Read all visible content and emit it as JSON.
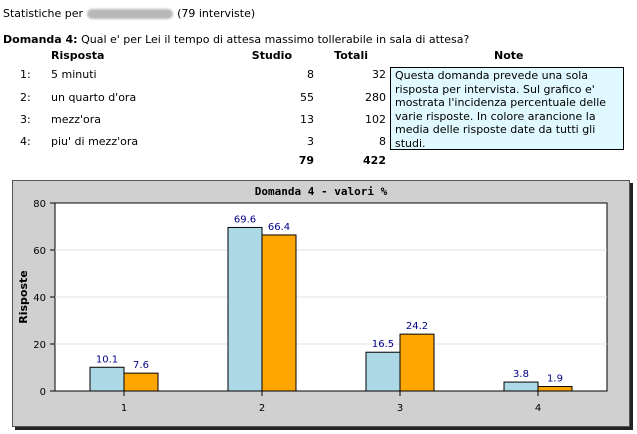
{
  "header": {
    "prefix": "Statistiche per",
    "suffix": "(79 interviste)"
  },
  "question": {
    "label": "Domanda 4:",
    "text": "Qual e' per Lei il tempo di attesa massimo tollerabile in sala di attesa?"
  },
  "table": {
    "columns": [
      "Risposta",
      "Studio",
      "Totali",
      "Note"
    ],
    "rows": [
      {
        "num": "1:",
        "label": "5 minuti",
        "studio": "8",
        "totali": "32"
      },
      {
        "num": "2:",
        "label": "un quarto d'ora",
        "studio": "55",
        "totali": "280"
      },
      {
        "num": "3:",
        "label": "mezz'ora",
        "studio": "13",
        "totali": "102"
      },
      {
        "num": "4:",
        "label": "piu' di mezz'ora",
        "studio": "3",
        "totali": "8"
      }
    ],
    "totals": {
      "studio": "79",
      "totali": "422"
    },
    "note": "Questa domanda prevede una sola risposta per intervista. Sul grafico e' mostrata l'incidenza percentuale delle varie risposte. In colore arancione la media delle risposte date da tutti gli studi."
  },
  "chart_data": {
    "type": "bar",
    "title": "Domanda 4 - valori %",
    "ylabel": "Risposte",
    "xlabel": "",
    "categories": [
      "1",
      "2",
      "3",
      "4"
    ],
    "series": [
      {
        "values": [
          10.1,
          69.6,
          16.5,
          3.8
        ],
        "color": "#add8e6"
      },
      {
        "values": [
          7.6,
          66.4,
          24.2,
          1.9
        ],
        "color": "#ffa500"
      }
    ],
    "ylim": [
      0,
      80
    ],
    "yticks": [
      0,
      20,
      40,
      60,
      80
    ],
    "value_labels": [
      [
        "10.1",
        "69.6",
        "16.5",
        "3.8"
      ],
      [
        "7.6",
        "66.4",
        "24.2",
        "1.9"
      ]
    ],
    "grid": true,
    "label_color": "#00008b"
  }
}
